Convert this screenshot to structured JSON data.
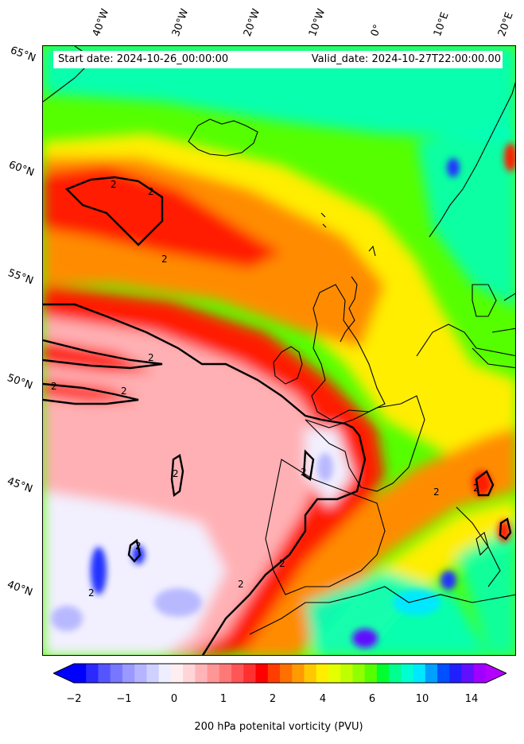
{
  "info": {
    "start_date": "Start date: 2024-10-26_00:00:00",
    "valid_date": "Valid_date: 2024-10-27T22:00:00.00"
  },
  "longitude_labels": [
    "40°W",
    "30°W",
    "20°W",
    "10°W",
    "0°",
    "10°E",
    "20°E"
  ],
  "latitude_labels": [
    "65°N",
    "60°N",
    "55°N",
    "50°N",
    "45°N",
    "40°N"
  ],
  "contour_labels": [
    "2",
    "2",
    "2",
    "2",
    "2",
    "2",
    "2",
    "2",
    "2",
    "2",
    "2",
    "2",
    "2",
    "2"
  ],
  "colorbar": {
    "label": "200 hPa potenital vorticity (PVU)",
    "ticks": [
      "−2",
      "−1",
      "0",
      "1",
      "2",
      "4",
      "6",
      "10",
      "14"
    ],
    "colors": [
      "#0000ff",
      "#2a2aff",
      "#5555ff",
      "#7777ff",
      "#9999ff",
      "#b5b5ff",
      "#d0d0ff",
      "#eeeeff",
      "#ffeef0",
      "#ffd5d8",
      "#ffb5b8",
      "#ff9696",
      "#ff7878",
      "#ff5555",
      "#ff3030",
      "#ff0000",
      "#ff3d00",
      "#ff7000",
      "#ff9a00",
      "#ffc800",
      "#ffee00",
      "#e6ff00",
      "#c0ff00",
      "#90ff00",
      "#55ff00",
      "#00ff30",
      "#00ff90",
      "#00ffd0",
      "#00e8ff",
      "#00a0ff",
      "#0050ff",
      "#2020ff",
      "#6010ff",
      "#a000ff"
    ],
    "extend_low_color": "#0000ff",
    "extend_high_color": "#b400ff"
  },
  "field_colors": {
    "deep_blue": "#2233ff",
    "light_blue": "#b8b8ff",
    "white": "#f2f0ff",
    "pink": "#ffb0b4",
    "red": "#ff1a00",
    "orange": "#ff8c00",
    "yellow": "#ffee00",
    "yellow_green": "#c8ff00",
    "green": "#55ff00",
    "cyan": "#00ffc0",
    "coastline": "#000000",
    "contour": "#000000"
  }
}
